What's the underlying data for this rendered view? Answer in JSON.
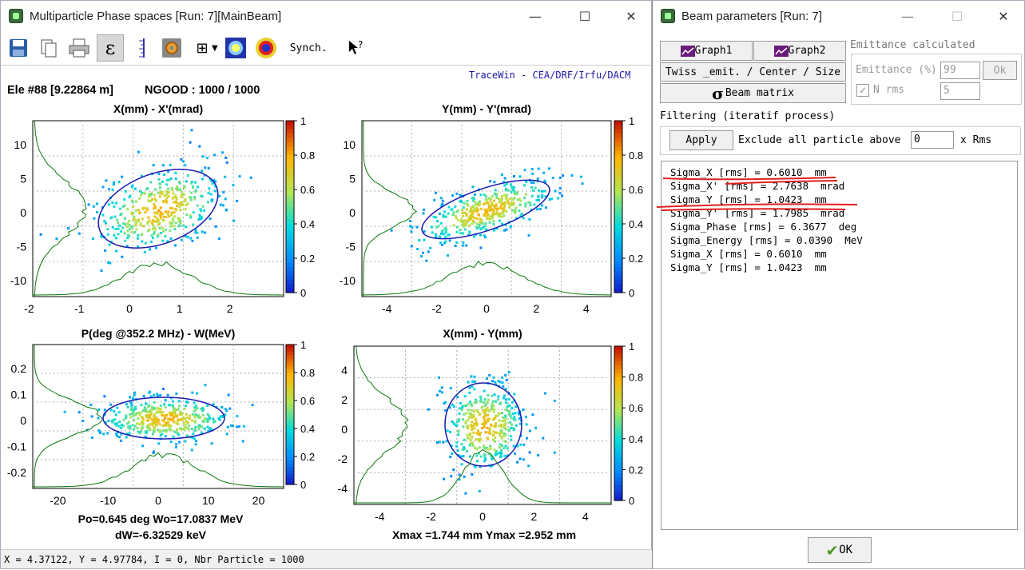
{
  "win1": {
    "title": "Multiparticle Phase spaces [Run: 7][MainBeam]",
    "minimize": "—",
    "maximize": "☐",
    "close": "✕",
    "toolbar": {
      "synch_label": "Synch."
    },
    "credit": "TraceWin - CEA/DRF/Irfu/DACM",
    "element_info": "Ele #88 [9.22864 m]",
    "ngood": "NGOOD : 1000 / 1000",
    "colorbar_ticks": [
      "1",
      "0.8",
      "0.6",
      "0.4",
      "0.2",
      "0"
    ],
    "plots": {
      "xx": {
        "title": "X(mm) - X'(mrad)",
        "xticks": [
          "-2",
          "-1",
          "0",
          "1",
          "2"
        ],
        "yticks": [
          "10",
          "5",
          "0",
          "-5",
          "-10"
        ]
      },
      "yy": {
        "title": "Y(mm) - Y'(mrad)",
        "xticks": [
          "-4",
          "-2",
          "0",
          "2",
          "4"
        ],
        "yticks": [
          "10",
          "5",
          "0",
          "-5",
          "-10"
        ]
      },
      "pw": {
        "title": "P(deg @352.2 MHz) - W(MeV)",
        "xticks": [
          "-20",
          "-10",
          "0",
          "10",
          "20"
        ],
        "yticks": [
          "0.2",
          "0.1",
          "0",
          "-0.1",
          "-0.2"
        ],
        "info1": "Po=0.645 deg  Wo=17.0837 MeV",
        "info2": "dW=-6.32529 keV"
      },
      "xy": {
        "title": "X(mm) - Y(mm)",
        "xticks": [
          "-4",
          "-2",
          "0",
          "2",
          "4"
        ],
        "yticks": [
          "4",
          "2",
          "0",
          "-2",
          "-4"
        ],
        "info1": "Xmax =1.744 mm  Ymax =2.952 mm"
      }
    },
    "status": "X = 4.37122, Y = 4.97784, I = 0, Nbr Particle = 1000"
  },
  "win2": {
    "title": "Beam parameters [Run: 7]",
    "graph1": "Graph1",
    "graph2": "Graph2",
    "twiss": "Twiss _emit. / Center / Size",
    "beam_matrix": "Beam matrix",
    "emit_group_label": "Emittance calculated",
    "emittance_label": "Emittance (%)",
    "emittance_value": "99",
    "ok_small": "Ok",
    "nrms_label": "N rms",
    "nrms_value": "5",
    "filtering_label": "Filtering (iteratif process)",
    "apply": "Apply",
    "exclude_label": "Exclude all particle above",
    "exclude_value": "0",
    "xrms_label": "x Rms",
    "results": [
      "Sigma_X [rms] = 0.6010  mm",
      "Sigma_X' [rms] = 2.7638  mrad",
      "Sigma_Y [rms] = 1.0423  mm",
      "Sigma_Y' [rms] = 1.7985  mrad",
      "Sigma_Phase [rms] = 6.3677  deg",
      "Sigma_Energy [rms] = 0.0390  MeV",
      "Sigma_X [rms] = 0.6010  mm",
      "Sigma_Y [rms] = 1.0423  mm"
    ],
    "ok_button": "OK"
  }
}
